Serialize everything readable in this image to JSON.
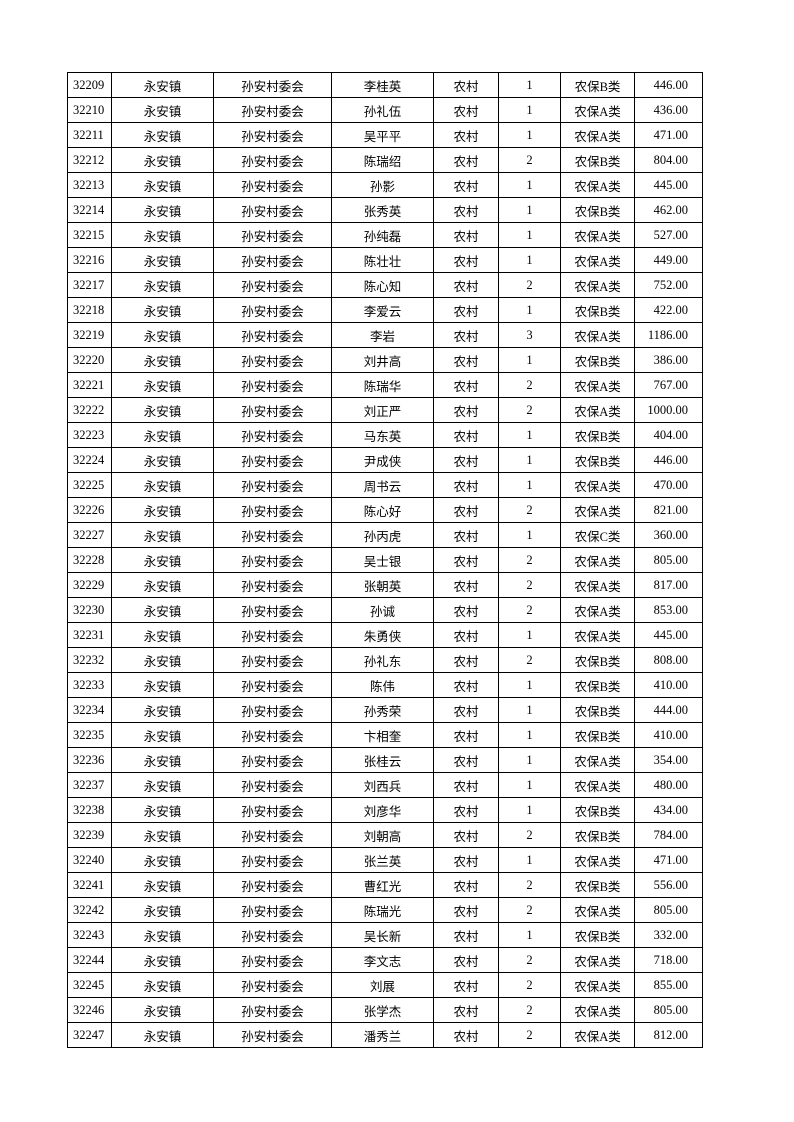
{
  "table": {
    "rows": [
      [
        "32209",
        "永安镇",
        "孙安村委会",
        "李桂英",
        "农村",
        "1",
        "农保B类",
        "446.00"
      ],
      [
        "32210",
        "永安镇",
        "孙安村委会",
        "孙礼伍",
        "农村",
        "1",
        "农保A类",
        "436.00"
      ],
      [
        "32211",
        "永安镇",
        "孙安村委会",
        "吴平平",
        "农村",
        "1",
        "农保A类",
        "471.00"
      ],
      [
        "32212",
        "永安镇",
        "孙安村委会",
        "陈瑞绍",
        "农村",
        "2",
        "农保B类",
        "804.00"
      ],
      [
        "32213",
        "永安镇",
        "孙安村委会",
        "孙影",
        "农村",
        "1",
        "农保A类",
        "445.00"
      ],
      [
        "32214",
        "永安镇",
        "孙安村委会",
        "张秀英",
        "农村",
        "1",
        "农保B类",
        "462.00"
      ],
      [
        "32215",
        "永安镇",
        "孙安村委会",
        "孙纯磊",
        "农村",
        "1",
        "农保A类",
        "527.00"
      ],
      [
        "32216",
        "永安镇",
        "孙安村委会",
        "陈壮壮",
        "农村",
        "1",
        "农保A类",
        "449.00"
      ],
      [
        "32217",
        "永安镇",
        "孙安村委会",
        "陈心知",
        "农村",
        "2",
        "农保A类",
        "752.00"
      ],
      [
        "32218",
        "永安镇",
        "孙安村委会",
        "李爱云",
        "农村",
        "1",
        "农保B类",
        "422.00"
      ],
      [
        "32219",
        "永安镇",
        "孙安村委会",
        "李岩",
        "农村",
        "3",
        "农保A类",
        "1186.00"
      ],
      [
        "32220",
        "永安镇",
        "孙安村委会",
        "刘井高",
        "农村",
        "1",
        "农保B类",
        "386.00"
      ],
      [
        "32221",
        "永安镇",
        "孙安村委会",
        "陈瑞华",
        "农村",
        "2",
        "农保A类",
        "767.00"
      ],
      [
        "32222",
        "永安镇",
        "孙安村委会",
        "刘正严",
        "农村",
        "2",
        "农保A类",
        "1000.00"
      ],
      [
        "32223",
        "永安镇",
        "孙安村委会",
        "马东英",
        "农村",
        "1",
        "农保B类",
        "404.00"
      ],
      [
        "32224",
        "永安镇",
        "孙安村委会",
        "尹成侠",
        "农村",
        "1",
        "农保B类",
        "446.00"
      ],
      [
        "32225",
        "永安镇",
        "孙安村委会",
        "周书云",
        "农村",
        "1",
        "农保A类",
        "470.00"
      ],
      [
        "32226",
        "永安镇",
        "孙安村委会",
        "陈心好",
        "农村",
        "2",
        "农保A类",
        "821.00"
      ],
      [
        "32227",
        "永安镇",
        "孙安村委会",
        "孙丙虎",
        "农村",
        "1",
        "农保C类",
        "360.00"
      ],
      [
        "32228",
        "永安镇",
        "孙安村委会",
        "吴士银",
        "农村",
        "2",
        "农保A类",
        "805.00"
      ],
      [
        "32229",
        "永安镇",
        "孙安村委会",
        "张朝英",
        "农村",
        "2",
        "农保A类",
        "817.00"
      ],
      [
        "32230",
        "永安镇",
        "孙安村委会",
        "孙诚",
        "农村",
        "2",
        "农保A类",
        "853.00"
      ],
      [
        "32231",
        "永安镇",
        "孙安村委会",
        "朱勇侠",
        "农村",
        "1",
        "农保A类",
        "445.00"
      ],
      [
        "32232",
        "永安镇",
        "孙安村委会",
        "孙礼东",
        "农村",
        "2",
        "农保B类",
        "808.00"
      ],
      [
        "32233",
        "永安镇",
        "孙安村委会",
        "陈伟",
        "农村",
        "1",
        "农保B类",
        "410.00"
      ],
      [
        "32234",
        "永安镇",
        "孙安村委会",
        "孙秀荣",
        "农村",
        "1",
        "农保B类",
        "444.00"
      ],
      [
        "32235",
        "永安镇",
        "孙安村委会",
        "卞相奎",
        "农村",
        "1",
        "农保B类",
        "410.00"
      ],
      [
        "32236",
        "永安镇",
        "孙安村委会",
        "张桂云",
        "农村",
        "1",
        "农保A类",
        "354.00"
      ],
      [
        "32237",
        "永安镇",
        "孙安村委会",
        "刘西兵",
        "农村",
        "1",
        "农保A类",
        "480.00"
      ],
      [
        "32238",
        "永安镇",
        "孙安村委会",
        "刘彦华",
        "农村",
        "1",
        "农保B类",
        "434.00"
      ],
      [
        "32239",
        "永安镇",
        "孙安村委会",
        "刘朝高",
        "农村",
        "2",
        "农保B类",
        "784.00"
      ],
      [
        "32240",
        "永安镇",
        "孙安村委会",
        "张兰英",
        "农村",
        "1",
        "农保A类",
        "471.00"
      ],
      [
        "32241",
        "永安镇",
        "孙安村委会",
        "曹红光",
        "农村",
        "2",
        "农保B类",
        "556.00"
      ],
      [
        "32242",
        "永安镇",
        "孙安村委会",
        "陈瑞光",
        "农村",
        "2",
        "农保A类",
        "805.00"
      ],
      [
        "32243",
        "永安镇",
        "孙安村委会",
        "吴长新",
        "农村",
        "1",
        "农保B类",
        "332.00"
      ],
      [
        "32244",
        "永安镇",
        "孙安村委会",
        "李文志",
        "农村",
        "2",
        "农保A类",
        "718.00"
      ],
      [
        "32245",
        "永安镇",
        "孙安村委会",
        "刘展",
        "农村",
        "2",
        "农保A类",
        "855.00"
      ],
      [
        "32246",
        "永安镇",
        "孙安村委会",
        "张学杰",
        "农村",
        "2",
        "农保A类",
        "805.00"
      ],
      [
        "32247",
        "永安镇",
        "孙安村委会",
        "潘秀兰",
        "农村",
        "2",
        "农保A类",
        "812.00"
      ]
    ]
  }
}
